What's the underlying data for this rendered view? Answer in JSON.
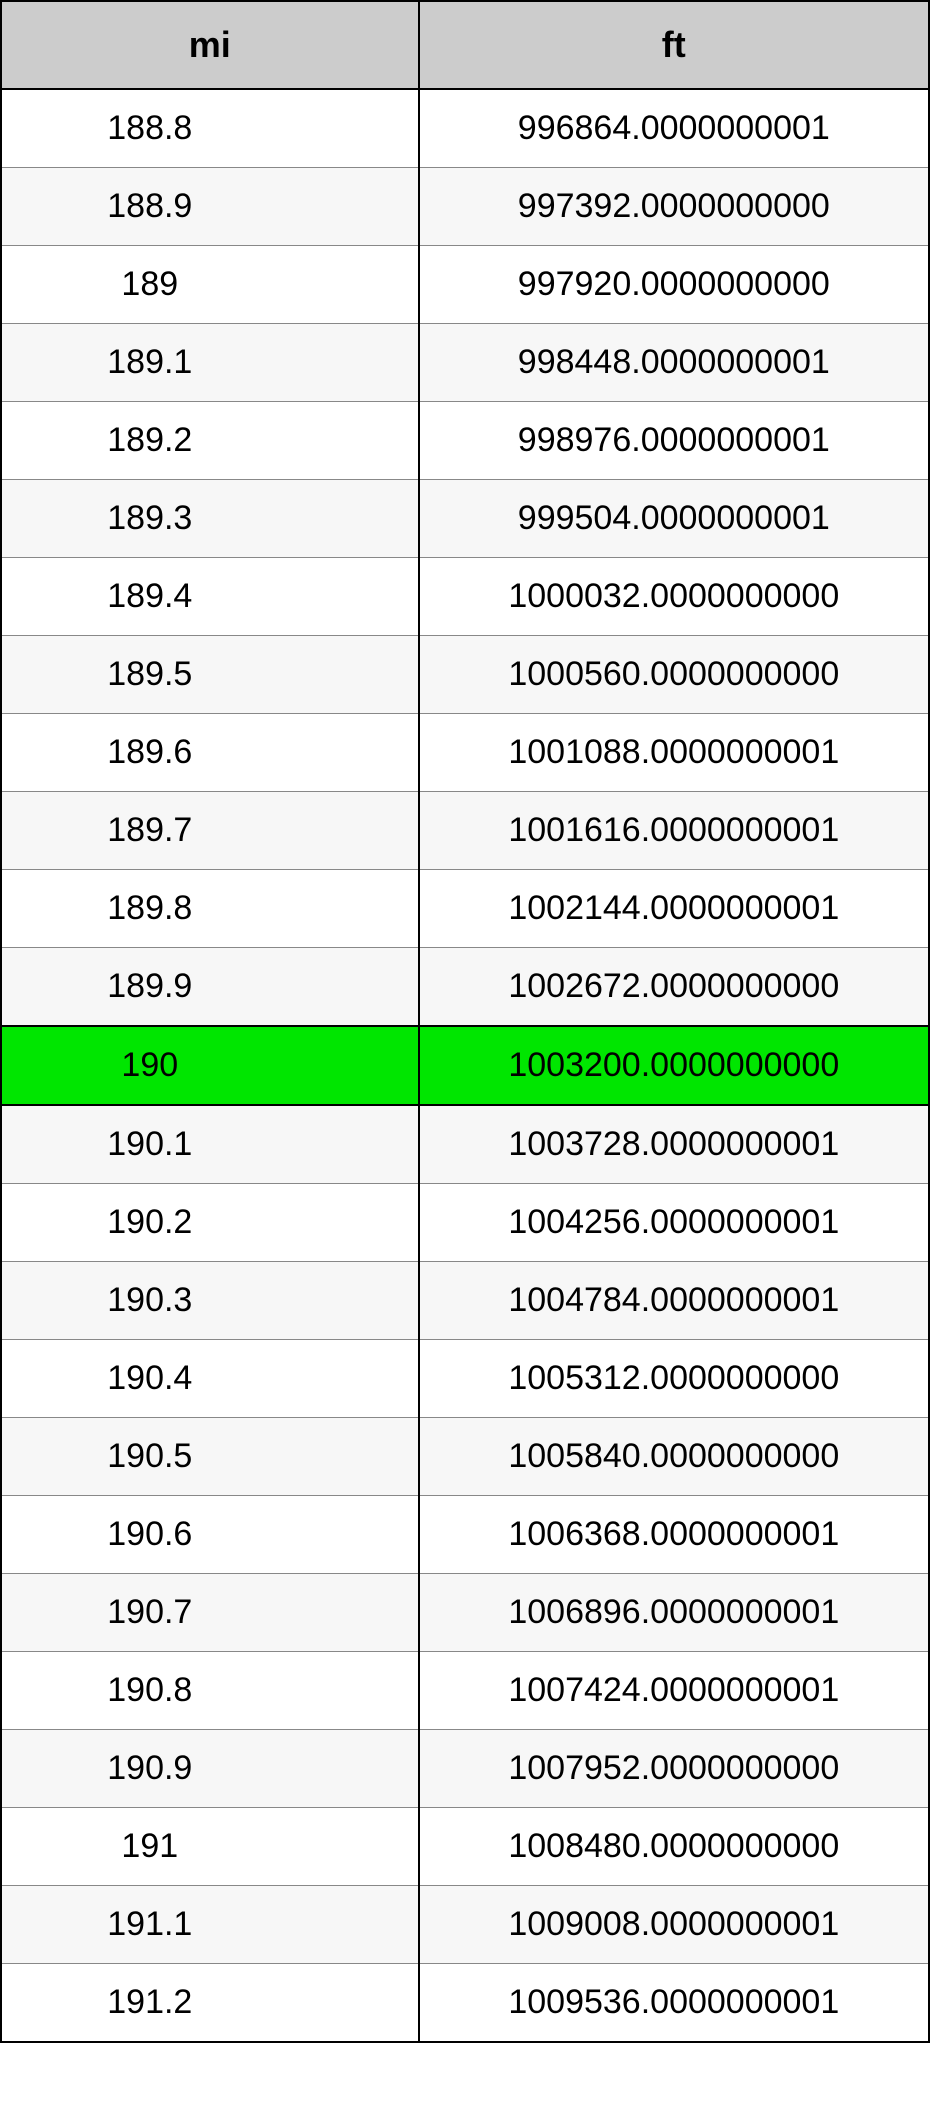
{
  "table": {
    "columns": [
      "mi",
      "ft"
    ],
    "header_bg": "#cccccc",
    "header_fontsize": 36,
    "cell_fontsize": 34,
    "row_bg_even": "#ffffff",
    "row_bg_odd": "#f7f7f7",
    "highlight_bg": "#00e600",
    "border_color": "#000000",
    "rows": [
      {
        "mi": "188.8",
        "ft": "996864.0000000001",
        "highlight": false
      },
      {
        "mi": "188.9",
        "ft": "997392.0000000000",
        "highlight": false
      },
      {
        "mi": "189",
        "ft": "997920.0000000000",
        "highlight": false
      },
      {
        "mi": "189.1",
        "ft": "998448.0000000001",
        "highlight": false
      },
      {
        "mi": "189.2",
        "ft": "998976.0000000001",
        "highlight": false
      },
      {
        "mi": "189.3",
        "ft": "999504.0000000001",
        "highlight": false
      },
      {
        "mi": "189.4",
        "ft": "1000032.0000000000",
        "highlight": false
      },
      {
        "mi": "189.5",
        "ft": "1000560.0000000000",
        "highlight": false
      },
      {
        "mi": "189.6",
        "ft": "1001088.0000000001",
        "highlight": false
      },
      {
        "mi": "189.7",
        "ft": "1001616.0000000001",
        "highlight": false
      },
      {
        "mi": "189.8",
        "ft": "1002144.0000000001",
        "highlight": false
      },
      {
        "mi": "189.9",
        "ft": "1002672.0000000000",
        "highlight": false
      },
      {
        "mi": "190",
        "ft": "1003200.0000000000",
        "highlight": true
      },
      {
        "mi": "190.1",
        "ft": "1003728.0000000001",
        "highlight": false
      },
      {
        "mi": "190.2",
        "ft": "1004256.0000000001",
        "highlight": false
      },
      {
        "mi": "190.3",
        "ft": "1004784.0000000001",
        "highlight": false
      },
      {
        "mi": "190.4",
        "ft": "1005312.0000000000",
        "highlight": false
      },
      {
        "mi": "190.5",
        "ft": "1005840.0000000000",
        "highlight": false
      },
      {
        "mi": "190.6",
        "ft": "1006368.0000000001",
        "highlight": false
      },
      {
        "mi": "190.7",
        "ft": "1006896.0000000001",
        "highlight": false
      },
      {
        "mi": "190.8",
        "ft": "1007424.0000000001",
        "highlight": false
      },
      {
        "mi": "190.9",
        "ft": "1007952.0000000000",
        "highlight": false
      },
      {
        "mi": "191",
        "ft": "1008480.0000000000",
        "highlight": false
      },
      {
        "mi": "191.1",
        "ft": "1009008.0000000001",
        "highlight": false
      },
      {
        "mi": "191.2",
        "ft": "1009536.0000000001",
        "highlight": false
      }
    ]
  }
}
